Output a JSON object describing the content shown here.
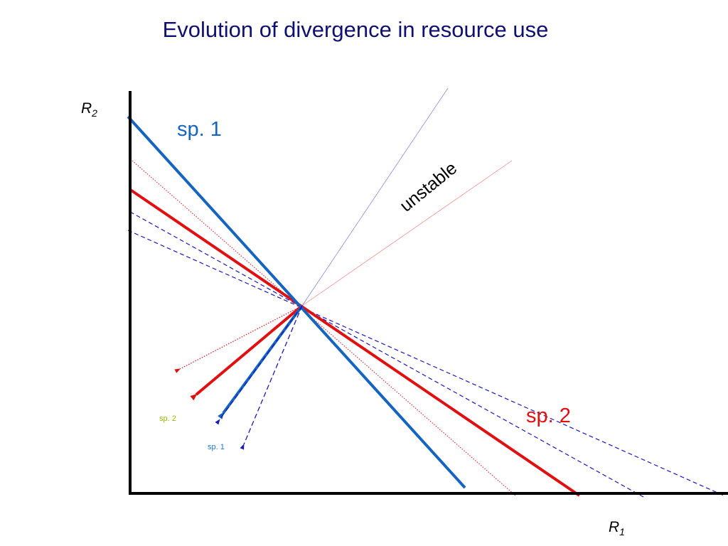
{
  "title": "Evolution of divergence in resource use",
  "axes": {
    "y_label": "R",
    "y_subscript": "2",
    "x_label": "R",
    "x_subscript": "1"
  },
  "labels": {
    "sp1_large": "sp. 1",
    "sp2_large": "sp. 2",
    "unstable": "unstable",
    "sp2_small": "sp. 2",
    "sp1_small": "sp. 1"
  },
  "colors": {
    "title": "#101070",
    "sp1": "#1565C0",
    "sp2": "#E01010",
    "dashed_blue": "#1A1AB8",
    "dotted_red": "#E01010",
    "sp2_small_label": "#99BB00",
    "sp1_small_label": "#1976D2",
    "axis": "#000000"
  }
}
